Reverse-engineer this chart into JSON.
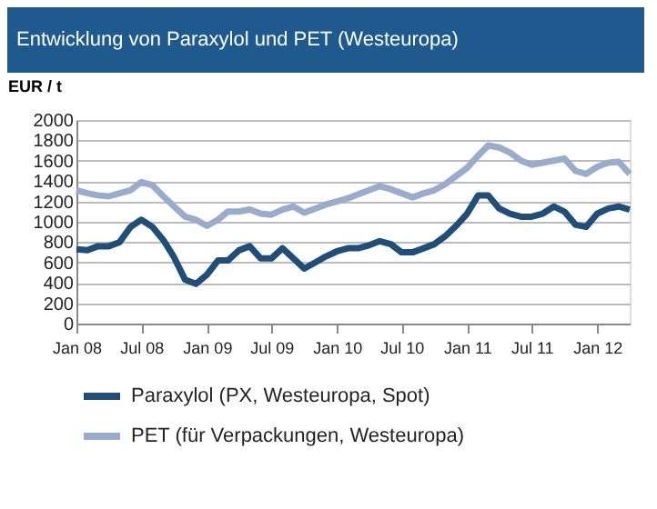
{
  "chart_data": {
    "type": "line",
    "title": "Entwicklung von Paraxylol und PET (Westeuropa)",
    "ylabel": "EUR / t",
    "x": [
      "2008-01",
      "2008-02",
      "2008-03",
      "2008-04",
      "2008-05",
      "2008-06",
      "2008-07",
      "2008-08",
      "2008-09",
      "2008-10",
      "2008-11",
      "2008-12",
      "2009-01",
      "2009-02",
      "2009-03",
      "2009-04",
      "2009-05",
      "2009-06",
      "2009-07",
      "2009-08",
      "2009-09",
      "2009-10",
      "2009-11",
      "2009-12",
      "2010-01",
      "2010-02",
      "2010-03",
      "2010-04",
      "2010-05",
      "2010-06",
      "2010-07",
      "2010-08",
      "2010-09",
      "2010-10",
      "2010-11",
      "2010-12",
      "2011-01",
      "2011-02",
      "2011-03",
      "2011-04",
      "2011-05",
      "2011-06",
      "2011-07",
      "2011-08",
      "2011-09",
      "2011-10",
      "2011-11",
      "2011-12",
      "2012-01",
      "2012-02",
      "2012-03",
      "2012-04"
    ],
    "series": [
      {
        "name": "Paraxylol (PX, Westeuropa, Spot)",
        "color": "#1f4e79",
        "values": [
          730,
          720,
          760,
          760,
          800,
          950,
          1020,
          950,
          820,
          650,
          430,
          390,
          480,
          620,
          620,
          720,
          760,
          640,
          640,
          740,
          640,
          540,
          600,
          660,
          710,
          740,
          740,
          770,
          810,
          780,
          700,
          700,
          740,
          780,
          860,
          960,
          1080,
          1260,
          1260,
          1130,
          1080,
          1050,
          1050,
          1080,
          1150,
          1100,
          970,
          950,
          1080,
          1130,
          1150,
          1120
        ]
      },
      {
        "name": "PET (für Verpackungen, Westeuropa)",
        "color": "#9aaccb",
        "values": [
          1310,
          1280,
          1260,
          1250,
          1280,
          1310,
          1390,
          1360,
          1250,
          1150,
          1050,
          1020,
          960,
          1020,
          1100,
          1100,
          1120,
          1080,
          1070,
          1120,
          1150,
          1090,
          1130,
          1170,
          1200,
          1230,
          1270,
          1310,
          1350,
          1320,
          1280,
          1240,
          1280,
          1310,
          1370,
          1450,
          1530,
          1650,
          1750,
          1730,
          1680,
          1600,
          1560,
          1580,
          1600,
          1620,
          1500,
          1470,
          1540,
          1580,
          1590,
          1470
        ]
      }
    ],
    "xlim": [
      "2008-01",
      "2012-04"
    ],
    "xticks": [
      {
        "value": "2008-01",
        "label": "Jan 08"
      },
      {
        "value": "2008-07",
        "label": "Jul 08"
      },
      {
        "value": "2009-01",
        "label": "Jan 09"
      },
      {
        "value": "2009-07",
        "label": "Jul 09"
      },
      {
        "value": "2010-01",
        "label": "Jan 10"
      },
      {
        "value": "2010-07",
        "label": "Jul 10"
      },
      {
        "value": "2011-01",
        "label": "Jan 11"
      },
      {
        "value": "2011-07",
        "label": "Jul 11"
      },
      {
        "value": "2012-01",
        "label": "Jan 12"
      }
    ],
    "ylim": [
      0,
      2000
    ],
    "yticks": [
      0,
      200,
      400,
      600,
      800,
      1000,
      1200,
      1400,
      1600,
      1800,
      2000
    ],
    "grid": "y",
    "legend": "bottom",
    "marker": "none",
    "line_style": "solid"
  }
}
